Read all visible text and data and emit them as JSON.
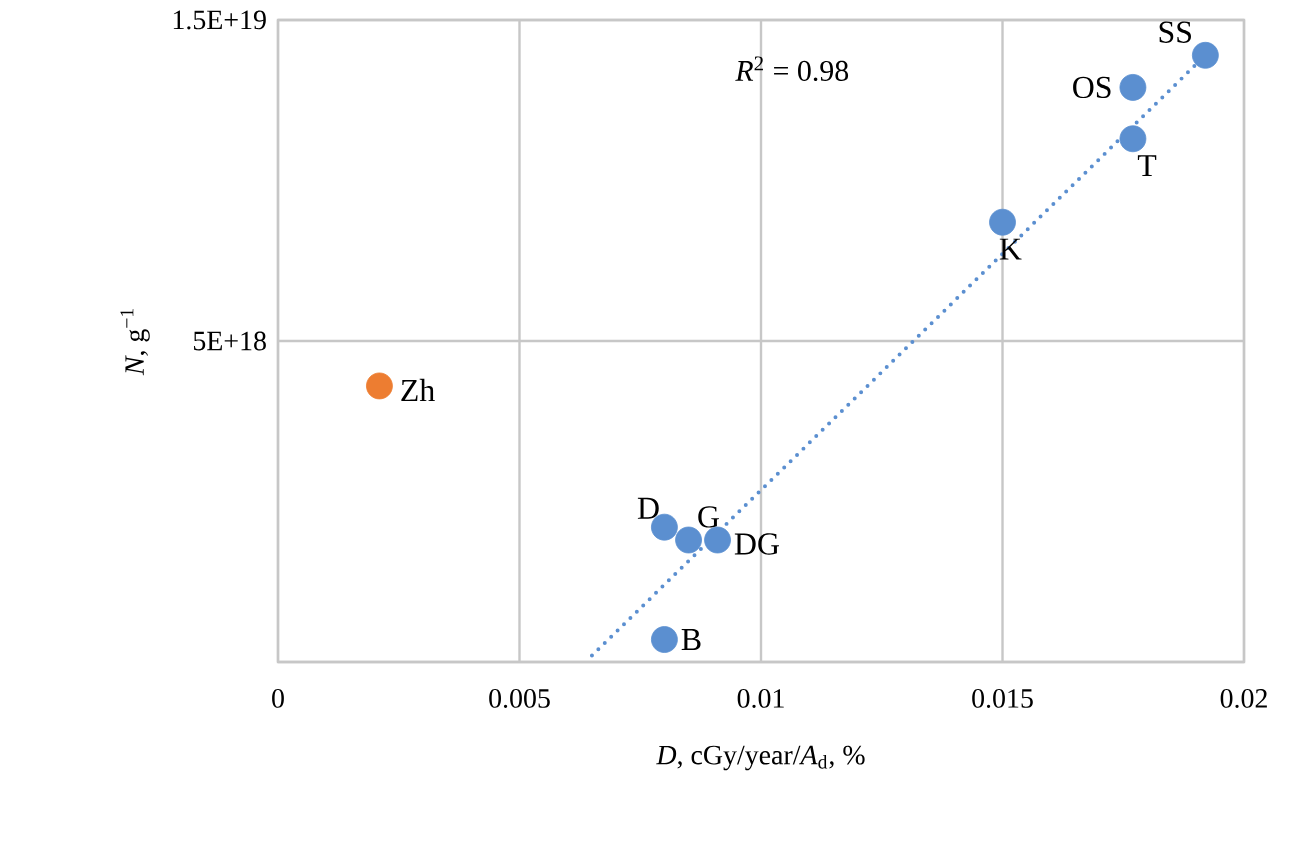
{
  "chart_data": {
    "type": "scatter",
    "xlabel": "*D*, cGy/year/*A*$_{d}$, %",
    "ylabel": "*N*, g$^{−1}$",
    "xlim": [
      0,
      0.02
    ],
    "ylim": [
      -5e+18,
      1.5e+19
    ],
    "xticks": [
      0,
      0.005,
      0.01,
      0.015,
      0.02
    ],
    "yticks": [
      {
        "value": -5e+18,
        "label": null
      },
      {
        "value": 5e+18,
        "label": "5E+18"
      },
      {
        "value": 1.5e+19,
        "label": "1.5E+19"
      }
    ],
    "grid": true,
    "marker": "circle",
    "series": [
      {
        "color": "#5b8fd0",
        "x": [
          0.008,
          0.0085,
          0.0091,
          0.008,
          0.015,
          0.0177,
          0.0177,
          0.0192
        ],
        "values": [
          -8e+17,
          -1.2e+18,
          -1.2e+18,
          -4.3e+18,
          8.7e+18,
          1.13e+19,
          1.29e+19,
          1.39e+19
        ]
      },
      {
        "color": "#ed7d31",
        "x": [
          0.0021
        ],
        "values": [
          3.6e+18
        ]
      },
      {
        "type": "line",
        "line_style": "dotted",
        "marker": "none",
        "color": "#5b8fd0",
        "x": [
          0.0065,
          0.0192
        ],
        "values": [
          -4.8e+18,
          1.39e+19
        ]
      }
    ],
    "annotations": [
      {
        "text": "D",
        "x": 0.008,
        "y": -8e+17
      },
      {
        "text": "G",
        "x": 0.0085,
        "y": -1.2e+18
      },
      {
        "text": "DG",
        "x": 0.0091,
        "y": -1.2e+18
      },
      {
        "text": "B",
        "x": 0.008,
        "y": -4.3e+18
      },
      {
        "text": "K",
        "x": 0.015,
        "y": 8.7e+18
      },
      {
        "text": "T",
        "x": 0.0177,
        "y": 1.13e+19
      },
      {
        "text": "OS",
        "x": 0.0177,
        "y": 1.29e+19
      },
      {
        "text": "SS",
        "x": 0.0192,
        "y": 1.39e+19
      },
      {
        "text": "Zh",
        "x": 0.0021,
        "y": 3.6e+18
      },
      "*R*$^{2}$ = 0.98"
    ]
  }
}
